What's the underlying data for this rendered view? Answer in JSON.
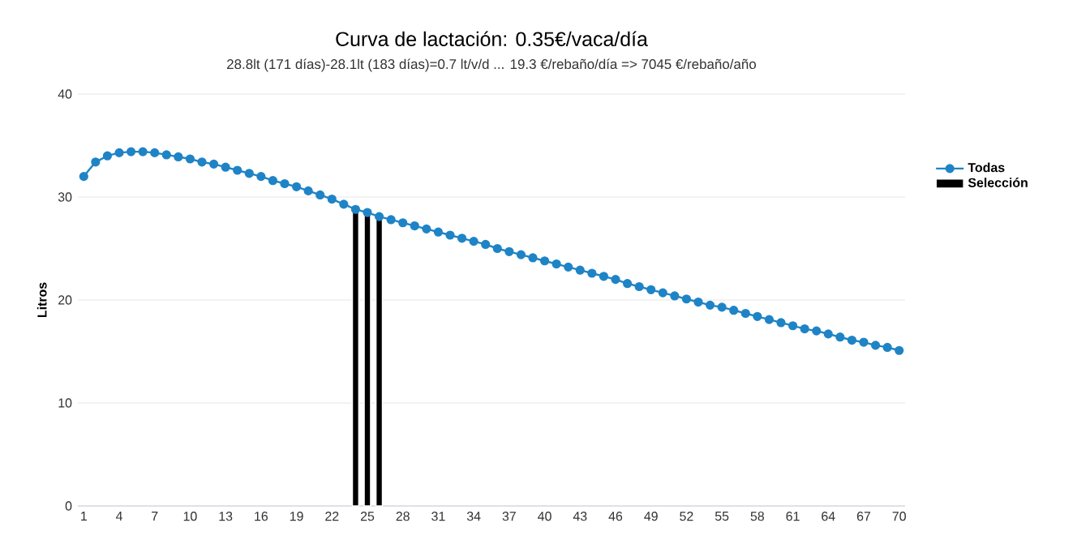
{
  "chart_data": {
    "type": "line",
    "title": "Curva de lactación: 0.35€/vaca/día",
    "subtitle": "28.8lt (171 días)-28.1lt (183 días)=0.7 lt/v/d ... 19.3 €/rebaño/día => 7045 €/rebaño/año",
    "ylabel": "Litros",
    "categories": [
      "1",
      null,
      null,
      "4",
      null,
      null,
      "7",
      null,
      null,
      "10",
      null,
      null,
      "13",
      null,
      null,
      "16",
      null,
      null,
      "19",
      null,
      null,
      "22",
      null,
      null,
      "25",
      null,
      null,
      "28",
      null,
      null,
      "31",
      null,
      null,
      "34",
      null,
      null,
      "37",
      null,
      null,
      "40",
      null,
      null,
      "43",
      null,
      null,
      "46",
      null,
      null,
      "49",
      null,
      null,
      "52",
      null,
      null,
      "55",
      null,
      null,
      "58",
      null,
      null,
      "61",
      null,
      null,
      "64",
      null,
      null,
      "67",
      null,
      null,
      "70"
    ],
    "series": [
      {
        "name": "Todas",
        "color": "#1f84c6",
        "values": [
          32.0,
          33.4,
          34.0,
          34.3,
          34.4,
          34.4,
          34.3,
          34.1,
          33.9,
          33.7,
          33.4,
          33.2,
          32.9,
          32.6,
          32.3,
          32.0,
          31.6,
          31.3,
          31.0,
          30.6,
          30.2,
          29.8,
          29.3,
          28.8,
          28.5,
          28.1,
          27.8,
          27.5,
          27.2,
          26.9,
          26.6,
          26.3,
          26.0,
          25.7,
          25.4,
          25.0,
          24.7,
          24.4,
          24.1,
          23.8,
          23.5,
          23.2,
          22.9,
          22.6,
          22.3,
          22.0,
          21.6,
          21.3,
          21.0,
          20.7,
          20.4,
          20.1,
          19.8,
          19.5,
          19.3,
          19.0,
          18.7,
          18.4,
          18.1,
          17.8,
          17.5,
          17.2,
          17.0,
          16.7,
          16.4,
          16.1,
          15.9,
          15.6,
          15.4,
          15.1
        ]
      },
      {
        "name": "Selección",
        "type": "bar",
        "color": "#000000",
        "values": [
          null,
          null,
          null,
          null,
          null,
          null,
          null,
          null,
          null,
          null,
          null,
          null,
          null,
          null,
          null,
          null,
          null,
          null,
          null,
          null,
          null,
          null,
          null,
          28.8,
          28.5,
          28.1,
          null,
          null,
          null,
          null,
          null,
          null,
          null,
          null,
          null,
          null,
          null,
          null,
          null,
          null,
          null,
          null,
          null,
          null,
          null,
          null,
          null,
          null,
          null,
          null,
          null,
          null,
          null,
          null,
          null,
          null,
          null,
          null,
          null,
          null,
          null,
          null,
          null,
          null,
          null,
          null,
          null,
          null,
          null,
          null
        ]
      }
    ],
    "ylim": [
      0,
      40
    ],
    "yticks": [
      0,
      10,
      20,
      30,
      40
    ],
    "grid": "y",
    "legend": "right",
    "marker": "circle",
    "line_style": "solid"
  }
}
